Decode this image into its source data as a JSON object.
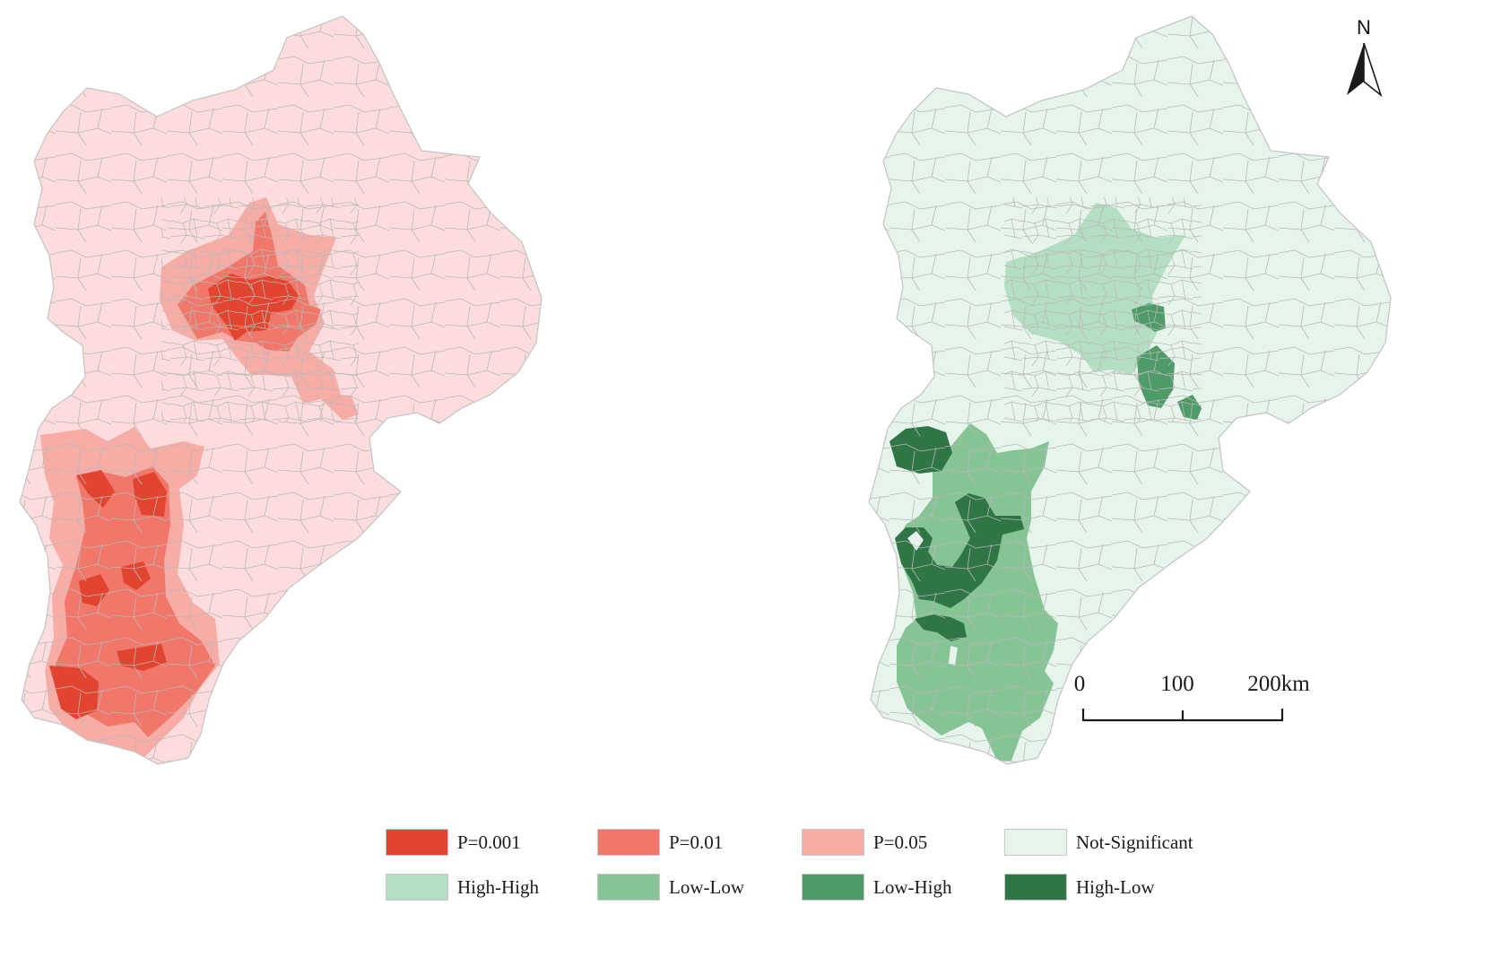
{
  "colors": {
    "red_base": "#fcdcdc",
    "red_p005": "#f7aca6",
    "red_p001": "#f0776a",
    "red_p0001": "#e2452f",
    "green_ns": "#e6f4ec",
    "green_hh": "#b5dfc2",
    "green_ll": "#86c395",
    "green_lh": "#4e9a68",
    "green_hl": "#2f7545",
    "boundary": "#b8b8b8"
  },
  "legend": [
    {
      "label": "P=0.001",
      "color": "#e2452f",
      "icon": "swatch"
    },
    {
      "label": "P=0.01",
      "color": "#f0776a",
      "icon": "swatch"
    },
    {
      "label": "P=0.05",
      "color": "#f7aca6",
      "icon": "swatch"
    },
    {
      "label": "Not-Significant",
      "color": "#e6f4ec",
      "icon": "swatch"
    },
    {
      "label": "High-High",
      "color": "#b5dfc2",
      "icon": "swatch"
    },
    {
      "label": "Low-Low",
      "color": "#86c395",
      "icon": "swatch"
    },
    {
      "label": "Low-High",
      "color": "#4e9a68",
      "icon": "swatch"
    },
    {
      "label": "High-Low",
      "color": "#2f7545",
      "icon": "swatch"
    }
  ],
  "scale_bar": {
    "ticks": [
      "0",
      "100",
      "200km"
    ]
  },
  "north_arrow": {
    "label": "N",
    "icon": "north-arrow-icon"
  }
}
